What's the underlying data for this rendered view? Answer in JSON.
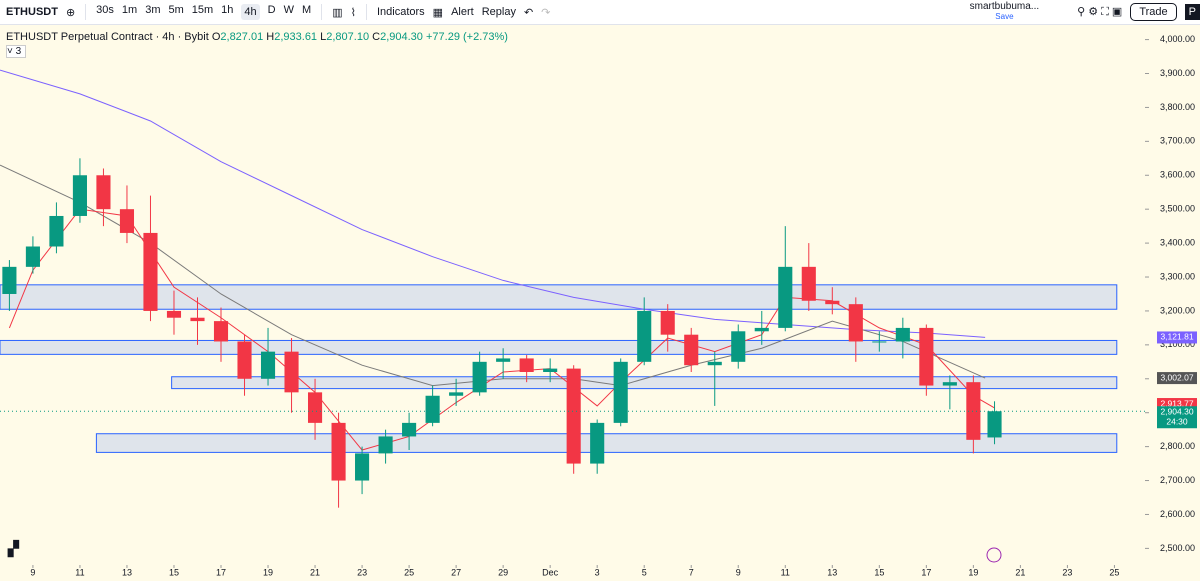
{
  "toolbar": {
    "symbol": "ETHUSDT",
    "intervals": [
      "30s",
      "1m",
      "3m",
      "5m",
      "15m",
      "1h",
      "4h",
      "D",
      "W",
      "M"
    ],
    "active_interval": "4h",
    "indicators": "Indicators",
    "alert": "Alert",
    "replay": "Replay",
    "user": "smartbubuma...",
    "save": "Save",
    "trade": "Trade",
    "cut": "P"
  },
  "legend": {
    "title": "ETHUSDT Perpetual Contract · 4h · Bybit",
    "ohlc": [
      {
        "label": "O",
        "value": "2,827.01"
      },
      {
        "label": "H",
        "value": "2,933.61"
      },
      {
        "label": "L",
        "value": "2,807.10"
      },
      {
        "label": "C",
        "value": "2,904.30"
      }
    ],
    "change": "+77.29 (+2.73%)",
    "collapsed": "3"
  },
  "chart_data": {
    "type": "candlestick",
    "up_color": "#089981",
    "down_color": "#f23645",
    "x": [
      -1,
      0,
      1,
      2,
      3,
      4,
      5,
      6,
      7,
      8,
      9,
      10,
      11,
      12,
      13,
      14,
      15,
      16,
      17,
      18,
      19,
      20,
      21,
      22,
      23,
      24,
      25,
      26,
      27,
      28,
      29,
      30,
      31,
      32,
      33,
      34,
      35,
      36,
      37,
      38,
      39,
      40,
      40.9
    ],
    "candles": [
      [
        3250,
        3350,
        3200,
        3330
      ],
      [
        3330,
        3420,
        3310,
        3390
      ],
      [
        3390,
        3520,
        3370,
        3480
      ],
      [
        3480,
        3650,
        3460,
        3600
      ],
      [
        3600,
        3620,
        3450,
        3500
      ],
      [
        3500,
        3570,
        3400,
        3430
      ],
      [
        3430,
        3540,
        3170,
        3200
      ],
      [
        3200,
        3260,
        3130,
        3180
      ],
      [
        3180,
        3240,
        3100,
        3170
      ],
      [
        3170,
        3210,
        3050,
        3110
      ],
      [
        3110,
        3130,
        2950,
        3000
      ],
      [
        3000,
        3150,
        2980,
        3080
      ],
      [
        3080,
        3120,
        2900,
        2960
      ],
      [
        2960,
        3000,
        2820,
        2870
      ],
      [
        2870,
        2900,
        2620,
        2700
      ],
      [
        2700,
        2800,
        2660,
        2780
      ],
      [
        2780,
        2850,
        2750,
        2830
      ],
      [
        2830,
        2900,
        2790,
        2870
      ],
      [
        2870,
        2980,
        2860,
        2950
      ],
      [
        2950,
        3000,
        2920,
        2960
      ],
      [
        2960,
        3080,
        2950,
        3050
      ],
      [
        3050,
        3090,
        3000,
        3060
      ],
      [
        3060,
        3070,
        2990,
        3020
      ],
      [
        3020,
        3060,
        2990,
        3030
      ],
      [
        3030,
        3040,
        2720,
        2750
      ],
      [
        2750,
        2880,
        2720,
        2870
      ],
      [
        2870,
        3060,
        2860,
        3050
      ],
      [
        3050,
        3240,
        3040,
        3200
      ],
      [
        3200,
        3220,
        3080,
        3130
      ],
      [
        3130,
        3150,
        3020,
        3040
      ],
      [
        3040,
        3080,
        2920,
        3050
      ],
      [
        3050,
        3160,
        3030,
        3140
      ],
      [
        3140,
        3200,
        3100,
        3150
      ],
      [
        3150,
        3450,
        3140,
        3330
      ],
      [
        3330,
        3400,
        3200,
        3230
      ],
      [
        3230,
        3270,
        3190,
        3220
      ],
      [
        3220,
        3240,
        3050,
        3110
      ],
      [
        3110,
        3140,
        3080,
        3110
      ],
      [
        3110,
        3180,
        3060,
        3150
      ],
      [
        3150,
        3160,
        2950,
        2980
      ],
      [
        2980,
        3010,
        2910,
        2990
      ],
      [
        2990,
        3010,
        2780,
        2820
      ],
      [
        2827.01,
        2933.61,
        2807.1,
        2904.3
      ]
    ],
    "lines": [
      {
        "color": "#7b61ff",
        "x": [
          -1.4,
          2,
          5,
          8,
          11,
          14,
          17,
          20,
          23,
          26,
          29,
          32,
          35,
          38,
          40.5
        ],
        "values": [
          3910,
          3840,
          3760,
          3640,
          3540,
          3440,
          3360,
          3290,
          3240,
          3205,
          3175,
          3160,
          3145,
          3135,
          3122
        ]
      },
      {
        "color": "#7a7a7a",
        "x": [
          -1.4,
          2,
          5,
          8,
          11,
          14,
          17,
          20,
          23,
          25,
          28,
          31,
          34,
          37,
          40.5
        ],
        "values": [
          3630,
          3520,
          3400,
          3250,
          3130,
          3040,
          2980,
          3000,
          3000,
          2980,
          3040,
          3090,
          3170,
          3110,
          3002
        ]
      },
      {
        "color": "#f23645",
        "x": [
          -1,
          0,
          2,
          4,
          6,
          8,
          10,
          12,
          14,
          16,
          18,
          20,
          22,
          24,
          25,
          27,
          29,
          31,
          32,
          34,
          36,
          38,
          40,
          40.9
        ],
        "values": [
          3150,
          3320,
          3500,
          3480,
          3270,
          3180,
          3080,
          2960,
          2790,
          2830,
          2930,
          3020,
          3030,
          2920,
          2990,
          3120,
          3080,
          3130,
          3240,
          3230,
          3150,
          3100,
          2950,
          2914
        ]
      }
    ],
    "zones": [
      {
        "xlim": [
          -1.4,
          46.1
        ],
        "ylim": [
          3205,
          3277
        ]
      },
      {
        "xlim": [
          -1.4,
          46.1
        ],
        "ylim": [
          3072,
          3113
        ]
      },
      {
        "xlim": [
          5.9,
          46.1
        ],
        "ylim": [
          2971,
          3006
        ]
      },
      {
        "xlim": [
          2.7,
          46.1
        ],
        "ylim": [
          2783,
          2838
        ]
      }
    ],
    "price_labels": [
      {
        "value": 3121.81,
        "label": "3,121.81",
        "color": "#7b61ff"
      },
      {
        "value": 3002.07,
        "label": "3,002.07",
        "color": "#555555"
      },
      {
        "value": 2913.77,
        "label": "2,913.77",
        "color": "#f23645"
      },
      {
        "value": 2904.3,
        "label": "2,904.30",
        "color": "#089981"
      }
    ],
    "countdown": "24:30",
    "xlim": [
      -1.4,
      47.3
    ],
    "ylim": [
      2451,
      4043
    ],
    "yticks": [
      {
        "value": 2500,
        "label": "2,500.00"
      },
      {
        "value": 2600,
        "label": "2,600.00"
      },
      {
        "value": 2700,
        "label": "2,700.00"
      },
      {
        "value": 2800,
        "label": "2,800.00"
      },
      {
        "value": 2900,
        "label": "2,900.00"
      },
      {
        "value": 3000,
        "label": "3,000.00"
      },
      {
        "value": 3100,
        "label": "3,100.00"
      },
      {
        "value": 3200,
        "label": "3,200.00"
      },
      {
        "value": 3300,
        "label": "3,300.00"
      },
      {
        "value": 3400,
        "label": "3,400.00"
      },
      {
        "value": 3500,
        "label": "3,500.00"
      },
      {
        "value": 3600,
        "label": "3,600.00"
      },
      {
        "value": 3700,
        "label": "3,700.00"
      },
      {
        "value": 3800,
        "label": "3,800.00"
      },
      {
        "value": 3900,
        "label": "3,900.00"
      },
      {
        "value": 4000,
        "label": "4,000.00"
      }
    ],
    "xticks": [
      {
        "value": 0,
        "label": "9"
      },
      {
        "value": 2,
        "label": "11"
      },
      {
        "value": 4,
        "label": "13"
      },
      {
        "value": 6,
        "label": "15"
      },
      {
        "value": 8,
        "label": "17"
      },
      {
        "value": 10,
        "label": "19"
      },
      {
        "value": 12,
        "label": "21"
      },
      {
        "value": 14,
        "label": "23"
      },
      {
        "value": 16,
        "label": "25"
      },
      {
        "value": 18,
        "label": "27"
      },
      {
        "value": 20,
        "label": "29"
      },
      {
        "value": 22,
        "label": "Dec"
      },
      {
        "value": 24,
        "label": "3"
      },
      {
        "value": 26,
        "label": "5"
      },
      {
        "value": 28,
        "label": "7"
      },
      {
        "value": 30,
        "label": "9"
      },
      {
        "value": 32,
        "label": "11"
      },
      {
        "value": 34,
        "label": "13"
      },
      {
        "value": 36,
        "label": "15"
      },
      {
        "value": 38,
        "label": "17"
      },
      {
        "value": 40,
        "label": "19"
      },
      {
        "value": 42,
        "label": "21"
      },
      {
        "value": 44,
        "label": "23"
      },
      {
        "value": 46,
        "label": "25"
      }
    ]
  }
}
